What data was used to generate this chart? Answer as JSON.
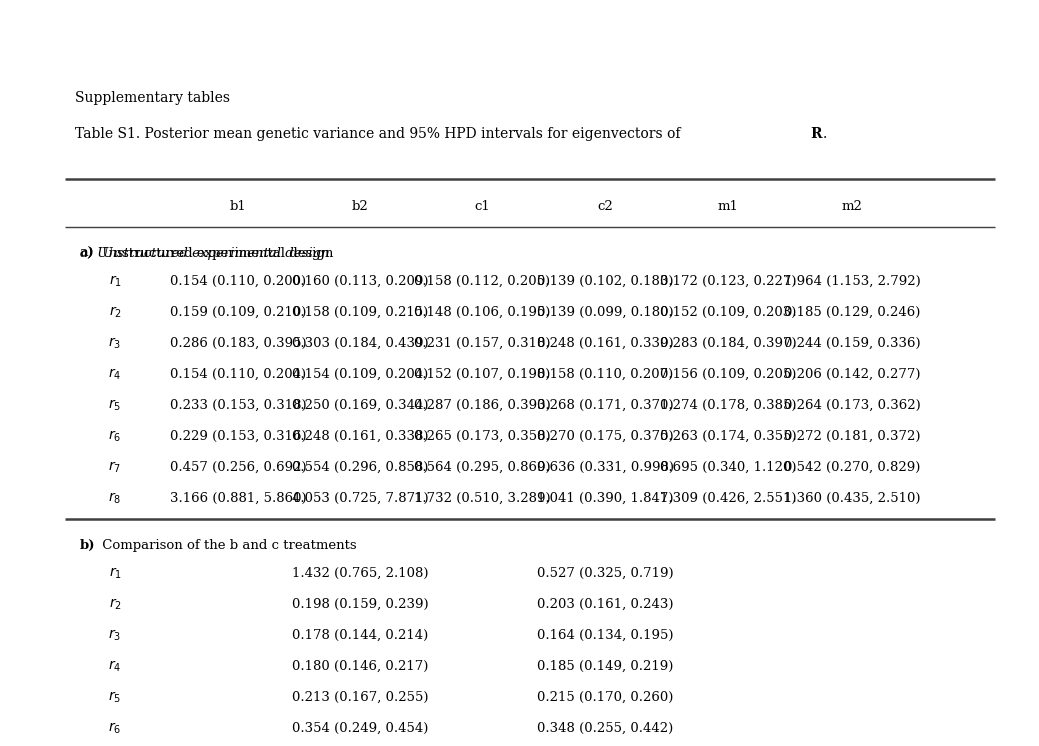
{
  "supp_title": "Supplementary tables",
  "table_title": "Table S1. Posterior mean genetic variance and 95% HPD intervals for eigenvectors of ",
  "table_title_bold": "R",
  "columns": [
    "",
    "b1",
    "b2",
    "c1",
    "c2",
    "m1",
    "m2"
  ],
  "section_a_label": "a) Unstructured experimental design",
  "section_a_rows": [
    [
      "r1",
      "0.154 (0.110, 0.200)",
      "0.160 (0.113, 0.209)",
      "0.158 (0.112, 0.205)",
      "0.139 (0.102, 0.183)",
      "0.172 (0.123, 0.227)",
      "1.964 (1.153, 2.792)"
    ],
    [
      "r2",
      "0.159 (0.109, 0.210)",
      "0.158 (0.109, 0.215)",
      "0.148 (0.106, 0.195)",
      "0.139 (0.099, 0.180)",
      "0.152 (0.109, 0.203)",
      "0.185 (0.129, 0.246)"
    ],
    [
      "r3",
      "0.286 (0.183, 0.395)",
      "0.303 (0.184, 0.439)",
      "0.231 (0.157, 0.318)",
      "0.248 (0.161, 0.339)",
      "0.283 (0.184, 0.397)",
      "0.244 (0.159, 0.336)"
    ],
    [
      "r4",
      "0.154 (0.110, 0.204)",
      "0.154 (0.109, 0.204)",
      "0.152 (0.107, 0.198)",
      "0.158 (0.110, 0.207)",
      "0.156 (0.109, 0.205)",
      "0.206 (0.142, 0.277)"
    ],
    [
      "r5",
      "0.233 (0.153, 0.318)",
      "0.250 (0.169, 0.344)",
      "0.287 (0.186, 0.393)",
      "0.268 (0.171, 0.371)",
      "0.274 (0.178, 0.385)",
      "0.264 (0.173, 0.362)"
    ],
    [
      "r6",
      "0.229 (0.153, 0.316)",
      "0.248 (0.161, 0.338)",
      "0.265 (0.173, 0.358)",
      "0.270 (0.175, 0.375)",
      "0.263 (0.174, 0.355)",
      "0.272 (0.181, 0.372)"
    ],
    [
      "r7",
      "0.457 (0.256, 0.692)",
      "0.554 (0.296, 0.858)",
      "0.564 (0.295, 0.869)",
      "0.636 (0.331, 0.998)",
      "0.695 (0.340, 1.120)",
      "0.542 (0.270, 0.829)"
    ],
    [
      "r8",
      "3.166 (0.881, 5.860)",
      "4.053 (0.725, 7.871)",
      "1.732 (0.510, 3.289)",
      "1.041 (0.390, 1.847)",
      "1.309 (0.426, 2.551)",
      "1.360 (0.435, 2.510)"
    ]
  ],
  "section_b_label": "b) Comparison of the b and c treatments",
  "section_b_rows": [
    [
      "r1",
      "",
      "1.432 (0.765, 2.108)",
      "",
      "0.527 (0.325, 0.719)",
      "",
      ""
    ],
    [
      "r2",
      "",
      "0.198 (0.159, 0.239)",
      "",
      "0.203 (0.161, 0.243)",
      "",
      ""
    ],
    [
      "r3",
      "",
      "0.178 (0.144, 0.214)",
      "",
      "0.164 (0.134, 0.195)",
      "",
      ""
    ],
    [
      "r4",
      "",
      "0.180 (0.146, 0.217)",
      "",
      "0.185 (0.149, 0.219)",
      "",
      ""
    ],
    [
      "r5",
      "",
      "0.213 (0.167, 0.255)",
      "",
      "0.215 (0.170, 0.260)",
      "",
      ""
    ],
    [
      "r6",
      "",
      "0.354 (0.249, 0.454)",
      "",
      "0.348 (0.255, 0.442)",
      "",
      ""
    ]
  ],
  "row_subscripts": [
    "1",
    "2",
    "3",
    "4",
    "5",
    "6",
    "7",
    "8"
  ],
  "background_color": "#ffffff",
  "text_color": "#000000",
  "line_color": "#404040",
  "font_size": 9.5,
  "header_font_size": 9.5,
  "title_font_size": 10
}
